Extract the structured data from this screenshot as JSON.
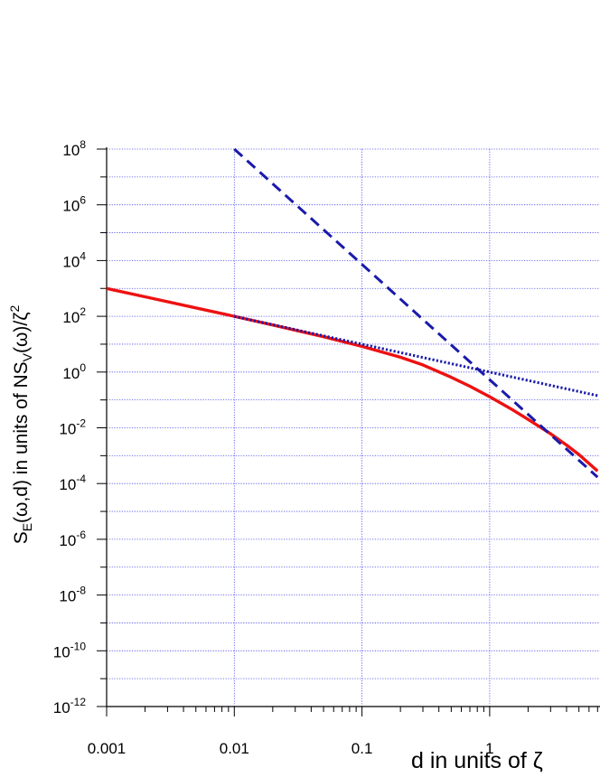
{
  "chart_data": {
    "type": "line",
    "xscale": "log",
    "yscale": "log",
    "xlim": [
      0.001,
      7
    ],
    "ylim": [
      1e-12,
      100000000.0
    ],
    "grid": true,
    "xlabel": "d in units of ζ",
    "ylabel": {
      "base": "S",
      "sub1": "E",
      "mid": "(ω,d) in units of NS",
      "sub2": "V",
      "tail": "(ω)/ζ",
      "sup": "2"
    },
    "x_ticks": [
      {
        "value": 0.001,
        "label": "0.001"
      },
      {
        "value": 0.01,
        "label": "0.01"
      },
      {
        "value": 0.1,
        "label": "0.1"
      },
      {
        "value": 1,
        "label": "1"
      }
    ],
    "y_ticks": [
      {
        "value": 100000000.0,
        "base": "10",
        "exp": "8"
      },
      {
        "value": 1000000.0,
        "base": "10",
        "exp": "6"
      },
      {
        "value": 10000.0,
        "base": "10",
        "exp": "4"
      },
      {
        "value": 100.0,
        "base": "10",
        "exp": "2"
      },
      {
        "value": 1,
        "base": "10",
        "exp": "0"
      },
      {
        "value": 0.01,
        "base": "10",
        "exp": "-2"
      },
      {
        "value": 0.0001,
        "base": "10",
        "exp": "-4"
      },
      {
        "value": 1e-06,
        "base": "10",
        "exp": "-6"
      },
      {
        "value": 1e-08,
        "base": "10",
        "exp": "-8"
      },
      {
        "value": 1e-10,
        "base": "10",
        "exp": "-10"
      },
      {
        "value": 1e-12,
        "base": "10",
        "exp": "-12"
      }
    ],
    "series": [
      {
        "style": "solid",
        "color": "#ee1111",
        "x": [
          0.001,
          0.002,
          0.005,
          0.01,
          0.02,
          0.05,
          0.1,
          0.2,
          0.3,
          0.5,
          0.7,
          1,
          1.5,
          2,
          3,
          4,
          5,
          7
        ],
        "y": [
          1000,
          500,
          200,
          100,
          49,
          18.5,
          8.3,
          3.4,
          1.8,
          0.65,
          0.31,
          0.13,
          0.045,
          0.02,
          0.0061,
          0.0024,
          0.0011,
          0.00028
        ]
      },
      {
        "style": "dashed",
        "color": "#1a1aaa",
        "x": [
          0.01,
          7
        ],
        "y": [
          100000000.0,
          0.00017
        ]
      },
      {
        "style": "dotted",
        "color": "#1a1aaa",
        "x": [
          0.01,
          7
        ],
        "y": [
          100,
          0.143
        ]
      }
    ]
  }
}
